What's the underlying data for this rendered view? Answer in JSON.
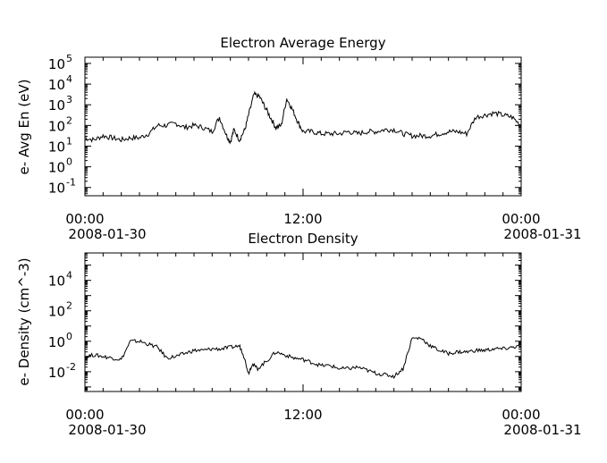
{
  "figure": {
    "background": "#ffffff",
    "line_color": "#000000"
  },
  "chart_data": [
    {
      "type": "line",
      "title": "Electron Average Energy",
      "xlabel": "",
      "ylabel": "e- Avg En (eV)",
      "yscale": "log",
      "ylim_log10": [
        -1.4,
        5.3
      ],
      "xlim_hours": [
        0,
        24
      ],
      "grid": false,
      "y_ticks": [
        {
          "base": "10",
          "exp": "5"
        },
        {
          "base": "10",
          "exp": "4"
        },
        {
          "base": "10",
          "exp": "3"
        },
        {
          "base": "10",
          "exp": "2"
        },
        {
          "base": "10",
          "exp": "1"
        },
        {
          "base": "10",
          "exp": "0"
        },
        {
          "base": "10",
          "exp": "-1"
        }
      ],
      "x_ticks": [
        {
          "time": "00:00",
          "date": "2008-01-30"
        },
        {
          "time": "12:00",
          "date": ""
        },
        {
          "time": "00:00",
          "date": "2008-01-31"
        }
      ],
      "series": [
        {
          "x_hours": [
            0,
            0.5,
            1,
            1.5,
            2,
            2.5,
            3,
            3.5,
            4,
            4.5,
            5,
            5.5,
            6,
            6.5,
            7,
            7.4,
            7.8,
            8,
            8.2,
            8.5,
            8.8,
            9,
            9.3,
            9.6,
            9.9,
            10.2,
            10.5,
            10.8,
            11.1,
            11.4,
            11.7,
            12,
            12.5,
            13,
            13.5,
            14,
            14.5,
            15,
            15.5,
            16,
            16.5,
            17,
            17.5,
            18,
            18.5,
            19,
            19.5,
            20,
            20.5,
            21,
            21.5,
            22,
            22.5,
            23,
            23.5,
            24
          ],
          "log10_values": [
            1.4,
            1.3,
            1.5,
            1.4,
            1.3,
            1.4,
            1.4,
            1.6,
            2.0,
            2.0,
            2.1,
            1.9,
            2.0,
            1.9,
            1.7,
            2.4,
            1.5,
            1.2,
            1.8,
            1.3,
            1.8,
            2.5,
            3.5,
            3.4,
            2.9,
            2.4,
            1.9,
            2.0,
            3.3,
            2.8,
            2.2,
            1.7,
            1.7,
            1.6,
            1.6,
            1.6,
            1.7,
            1.6,
            1.7,
            1.7,
            1.8,
            1.8,
            1.6,
            1.5,
            1.5,
            1.5,
            1.6,
            1.7,
            1.7,
            1.6,
            2.4,
            2.5,
            2.6,
            2.5,
            2.4,
            2.0
          ]
        }
      ]
    },
    {
      "type": "line",
      "title": "Electron Density",
      "xlabel": "",
      "ylabel": "e- Density (cm^-3)",
      "yscale": "log",
      "ylim_log10": [
        -3.3,
        5.8
      ],
      "xlim_hours": [
        0,
        24
      ],
      "grid": false,
      "y_ticks": [
        {
          "base": "10",
          "exp": "4"
        },
        {
          "base": "10",
          "exp": "2"
        },
        {
          "base": "10",
          "exp": "0"
        },
        {
          "base": "10",
          "exp": "-2"
        }
      ],
      "x_ticks": [
        {
          "time": "00:00",
          "date": "2008-01-30"
        },
        {
          "time": "12:00",
          "date": ""
        },
        {
          "time": "00:00",
          "date": "2008-01-31"
        }
      ],
      "series": [
        {
          "x_hours": [
            0,
            0.5,
            1,
            1.5,
            2,
            2.5,
            3,
            3.5,
            4,
            4.5,
            5,
            5.5,
            6,
            6.5,
            7,
            7.5,
            8,
            8.5,
            8.7,
            9,
            9.2,
            9.5,
            10,
            10.5,
            11,
            11.5,
            12,
            12.5,
            13,
            13.5,
            14,
            14.5,
            15,
            15.5,
            16,
            16.5,
            17,
            17.5,
            18,
            18.5,
            19,
            19.5,
            20,
            20.5,
            21,
            21.5,
            22,
            22.5,
            23,
            23.5,
            24
          ],
          "log10_values": [
            -1.0,
            -0.9,
            -1.0,
            -1.1,
            -1.2,
            0.0,
            0.0,
            -0.2,
            -0.4,
            -1.1,
            -1.0,
            -0.8,
            -0.6,
            -0.6,
            -0.5,
            -0.5,
            -0.4,
            -0.3,
            -0.8,
            -2.1,
            -1.5,
            -1.8,
            -1.3,
            -0.7,
            -0.9,
            -1.1,
            -1.2,
            -1.4,
            -1.6,
            -1.6,
            -1.8,
            -1.8,
            -1.7,
            -1.9,
            -2.1,
            -2.2,
            -2.3,
            -1.8,
            0.2,
            0.2,
            -0.3,
            -0.6,
            -0.8,
            -0.7,
            -0.7,
            -0.6,
            -0.6,
            -0.5,
            -0.5,
            -0.4,
            -0.3
          ]
        }
      ]
    }
  ]
}
